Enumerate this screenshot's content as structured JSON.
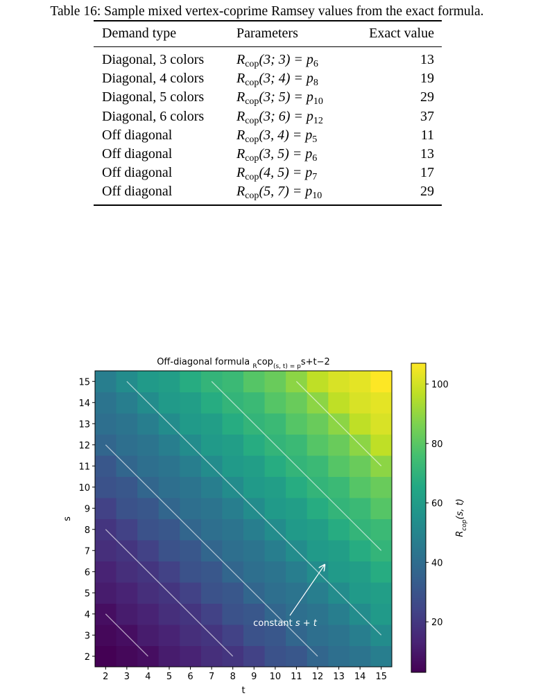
{
  "caption": "Table 16: Sample mixed vertex-coprime Ramsey values from the exact formula.",
  "table": {
    "header": [
      "Demand type",
      "Parameters",
      "Exact value"
    ],
    "rows": [
      [
        "Diagonal, 3 colors",
        [
          "R",
          "cop",
          "(3; 3) = p",
          "6"
        ],
        "13"
      ],
      [
        "Diagonal, 4 colors",
        [
          "R",
          "cop",
          "(3; 4) = p",
          "8"
        ],
        "19"
      ],
      [
        "Diagonal, 5 colors",
        [
          "R",
          "cop",
          "(3; 5) = p",
          "10"
        ],
        "29"
      ],
      [
        "Diagonal, 6 colors",
        [
          "R",
          "cop",
          "(3; 6) = p",
          "12"
        ],
        "37"
      ],
      [
        "Off diagonal",
        [
          "R",
          "cop",
          "(3, 4) = p",
          "5"
        ],
        "11"
      ],
      [
        "Off diagonal",
        [
          "R",
          "cop",
          "(3, 5) = p",
          "6"
        ],
        "13"
      ],
      [
        "Off diagonal",
        [
          "R",
          "cop",
          "(4, 5) = p",
          "7"
        ],
        "17"
      ],
      [
        "Off diagonal",
        [
          "R",
          "cop",
          "(5, 7) = p",
          "10"
        ],
        "29"
      ]
    ]
  },
  "chart_data": {
    "type": "heatmap",
    "title": [
      "Off-diagonal formula ",
      "R",
      "cop",
      "(s, t) = p",
      "s+t−2"
    ],
    "x_label": "t",
    "y_label": "s",
    "colorbar_label": [
      "R",
      "cop",
      "(s, t)"
    ],
    "x": [
      2,
      3,
      4,
      5,
      6,
      7,
      8,
      9,
      10,
      11,
      12,
      13,
      14,
      15
    ],
    "y": [
      2,
      3,
      4,
      5,
      6,
      7,
      8,
      9,
      10,
      11,
      12,
      13,
      14,
      15
    ],
    "z": [
      [
        3,
        5,
        7,
        11,
        13,
        17,
        19,
        23,
        29,
        31,
        37,
        41,
        43,
        47
      ],
      [
        5,
        7,
        11,
        13,
        17,
        19,
        23,
        29,
        31,
        37,
        41,
        43,
        47,
        53
      ],
      [
        7,
        11,
        13,
        17,
        19,
        23,
        29,
        31,
        37,
        41,
        43,
        47,
        53,
        59
      ],
      [
        11,
        13,
        17,
        19,
        23,
        29,
        31,
        37,
        41,
        43,
        47,
        53,
        59,
        61
      ],
      [
        13,
        17,
        19,
        23,
        29,
        31,
        37,
        41,
        43,
        47,
        53,
        59,
        61,
        67
      ],
      [
        17,
        19,
        23,
        29,
        31,
        37,
        41,
        43,
        47,
        53,
        59,
        61,
        67,
        71
      ],
      [
        19,
        23,
        29,
        31,
        37,
        41,
        43,
        47,
        53,
        59,
        61,
        67,
        71,
        73
      ],
      [
        23,
        29,
        31,
        37,
        41,
        43,
        47,
        53,
        59,
        61,
        67,
        71,
        73,
        79
      ],
      [
        29,
        31,
        37,
        41,
        43,
        47,
        53,
        59,
        61,
        67,
        71,
        73,
        79,
        83
      ],
      [
        31,
        37,
        41,
        43,
        47,
        53,
        59,
        61,
        67,
        71,
        73,
        79,
        83,
        89
      ],
      [
        37,
        41,
        43,
        47,
        53,
        59,
        61,
        67,
        71,
        73,
        79,
        83,
        89,
        97
      ],
      [
        41,
        43,
        47,
        53,
        59,
        61,
        67,
        71,
        73,
        79,
        83,
        89,
        97,
        101
      ],
      [
        43,
        47,
        53,
        59,
        61,
        67,
        71,
        73,
        79,
        83,
        89,
        97,
        101,
        103
      ],
      [
        47,
        53,
        59,
        61,
        67,
        71,
        73,
        79,
        83,
        89,
        97,
        101,
        103,
        107
      ]
    ],
    "zlim": [
      3,
      107
    ],
    "colorbar_ticks": [
      20,
      40,
      60,
      80,
      100
    ],
    "colormap": "viridis",
    "constant_lines": [
      6,
      10,
      14,
      18,
      22,
      26
    ],
    "annotation": [
      "constant ",
      "s + t"
    ]
  }
}
